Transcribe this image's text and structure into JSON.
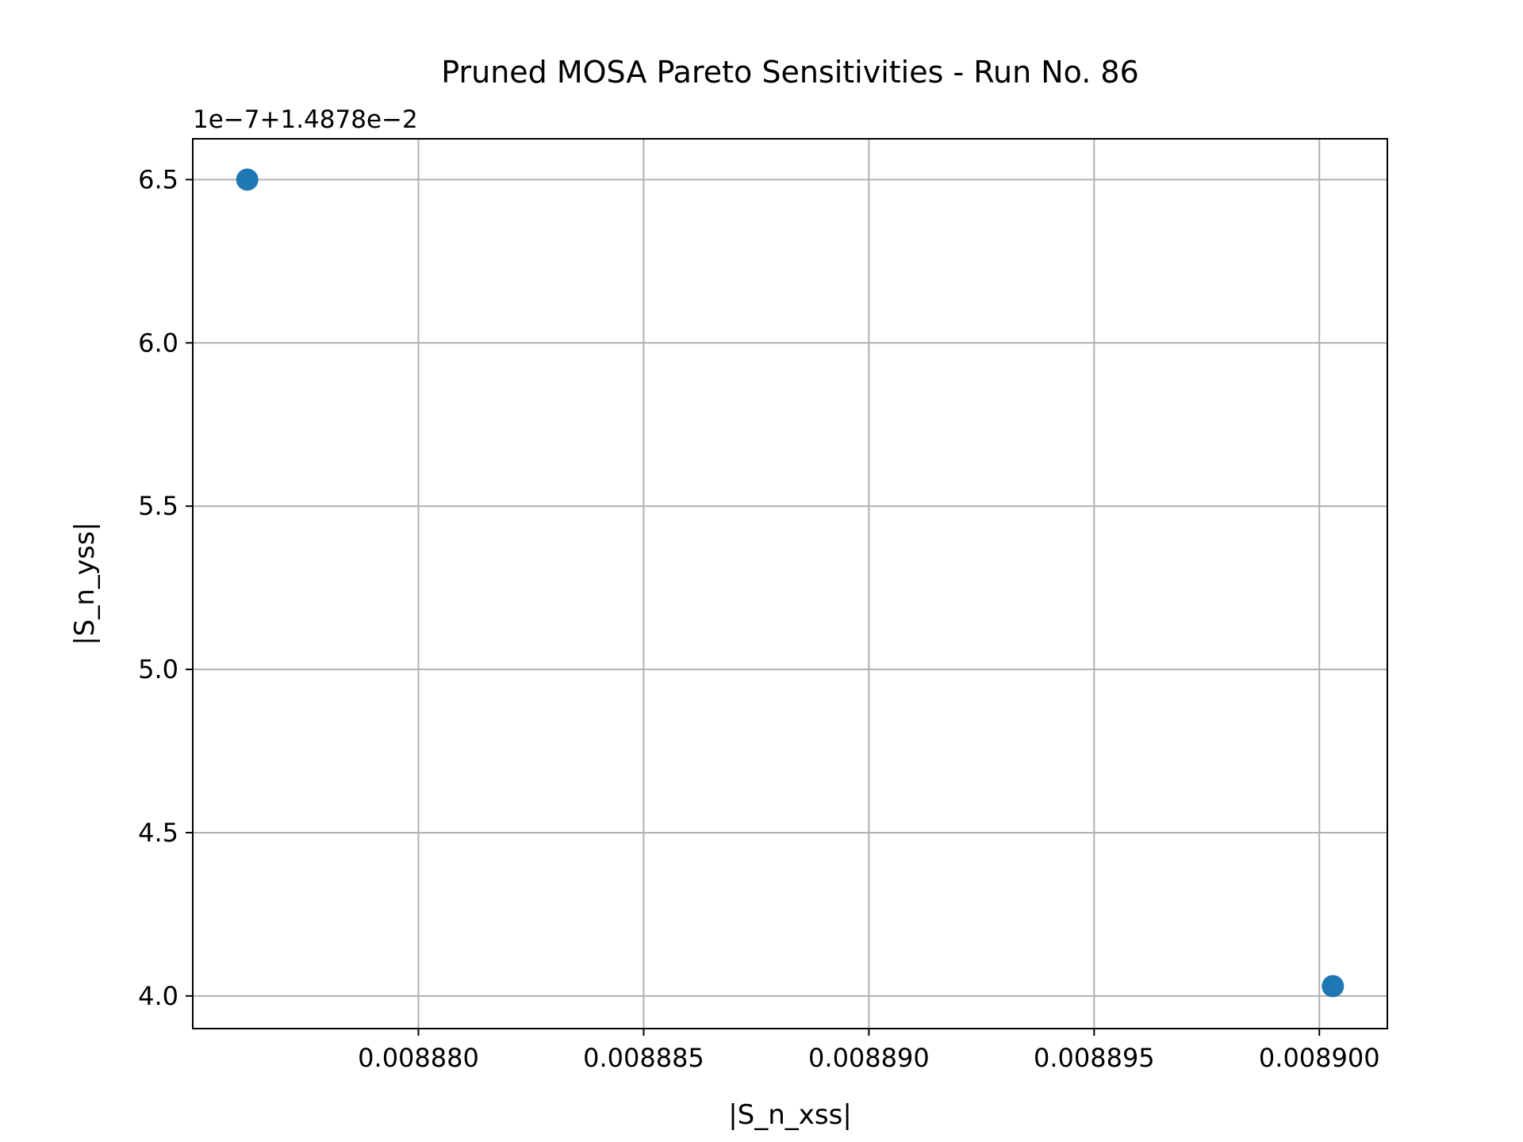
{
  "chart_data": {
    "type": "scatter",
    "title": "Pruned MOSA Pareto Sensitivities - Run No. 86",
    "xlabel": "|S_n_xss|",
    "ylabel": "|S_n_yss|",
    "y_offset_label": "1e−7+1.4878e−2",
    "x_ticks": [
      {
        "value": 0.00888,
        "label": "0.008880"
      },
      {
        "value": 0.008885,
        "label": "0.008885"
      },
      {
        "value": 0.00889,
        "label": "0.008890"
      },
      {
        "value": 0.008895,
        "label": "0.008895"
      },
      {
        "value": 0.0089,
        "label": "0.008900"
      }
    ],
    "y_ticks": [
      {
        "value": 4.0,
        "label": "4.0"
      },
      {
        "value": 4.5,
        "label": "4.5"
      },
      {
        "value": 5.0,
        "label": "5.0"
      },
      {
        "value": 5.5,
        "label": "5.5"
      },
      {
        "value": 6.0,
        "label": "6.0"
      },
      {
        "value": 6.5,
        "label": "6.5"
      }
    ],
    "xlim": [
      0.00887499,
      0.00890151
    ],
    "ylim": [
      3.9,
      6.625
    ],
    "points": [
      {
        "x": 0.0088762,
        "y": 6.5
      },
      {
        "x": 0.0089003,
        "y": 4.03
      }
    ],
    "marker_color": "#1f77b4",
    "grid": true
  }
}
